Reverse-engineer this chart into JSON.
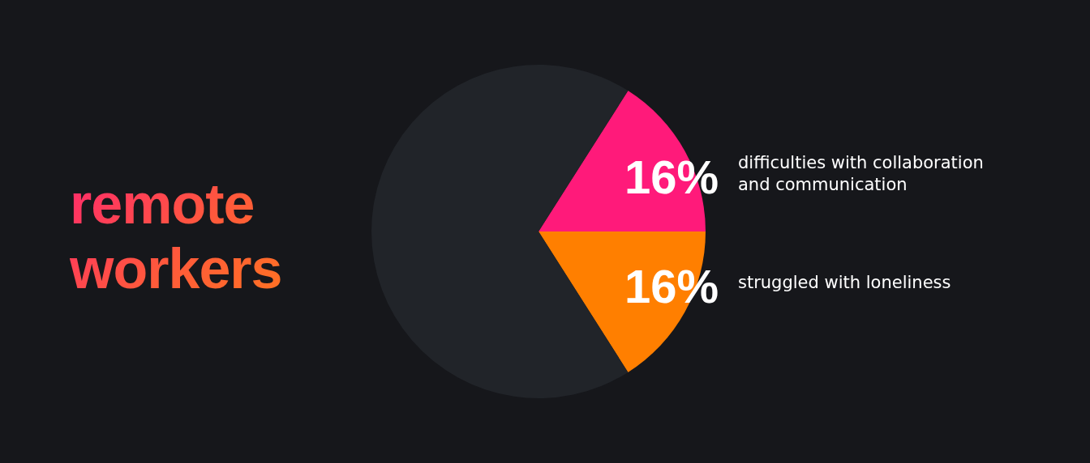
{
  "chart_data": {
    "type": "pie",
    "title": "remote workers",
    "categories": [
      "difficulties with collaboration and communication",
      "struggled with loneliness",
      null
    ],
    "values": [
      16,
      16,
      68
    ],
    "colors": [
      "#ff1a7a",
      "#ff7f00",
      "#212429"
    ],
    "value_labels": [
      "16%",
      "16%",
      null
    ],
    "legend": false
  }
}
